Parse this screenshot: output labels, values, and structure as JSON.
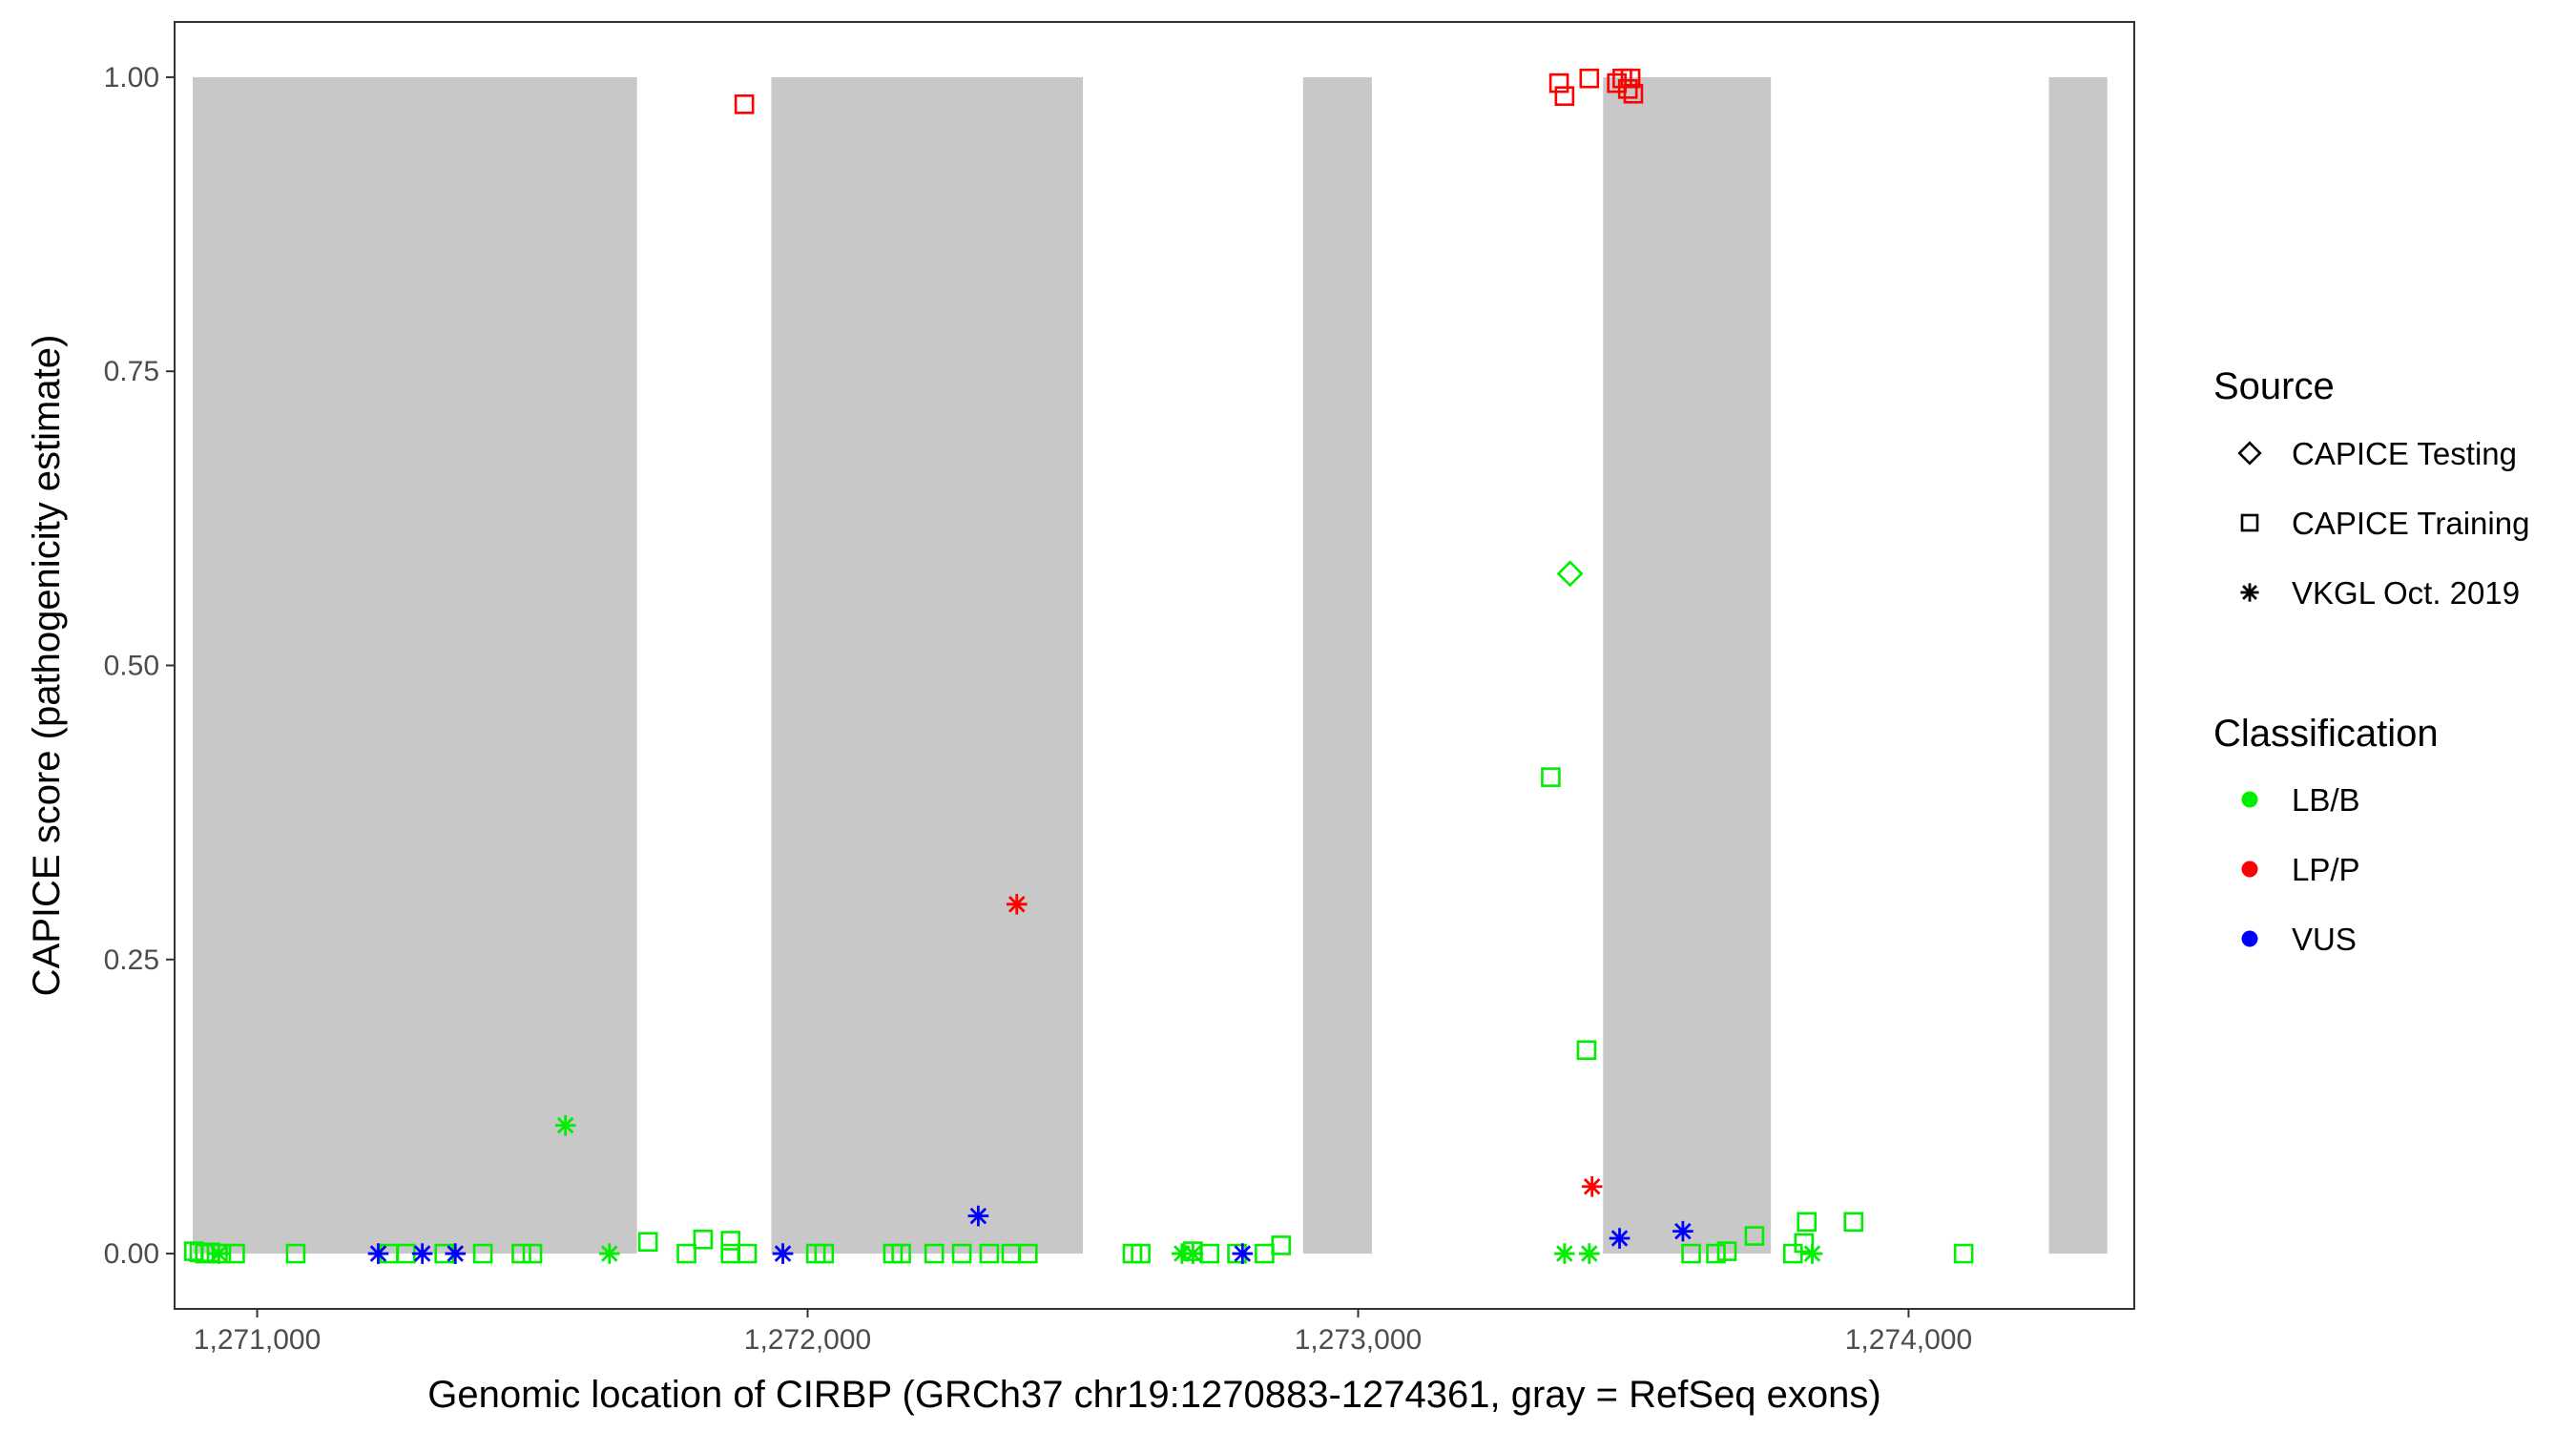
{
  "chart_data": {
    "type": "scatter",
    "title": "",
    "xlabel": "Genomic location of CIRBP (GRCh37 chr19:1270883-1274361, gray = RefSeq exons)",
    "ylabel": "CAPICE score (pathogenicity estimate)",
    "xlim": [
      1270850,
      1274410
    ],
    "ylim": [
      -0.047,
      1.047
    ],
    "x_ticks": [
      1271000,
      1272000,
      1273000,
      1274000
    ],
    "x_tick_labels": [
      "1,271,000",
      "1,272,000",
      "1,273,000",
      "1,274,000"
    ],
    "y_ticks": [
      0,
      0.25,
      0.5,
      0.75,
      1
    ],
    "y_tick_labels": [
      "0.00",
      "0.25",
      "0.50",
      "0.75",
      "1.00"
    ],
    "grid": false,
    "legend_position": "right",
    "exons": [
      {
        "start": 1270883,
        "end": 1271690
      },
      {
        "start": 1271934,
        "end": 1272500
      },
      {
        "start": 1272900,
        "end": 1273025
      },
      {
        "start": 1273445,
        "end": 1273750
      },
      {
        "start": 1274255,
        "end": 1274361
      }
    ],
    "exon_color": "#c8c8c8",
    "legends": {
      "source": {
        "title": "Source",
        "items": [
          {
            "label": "CAPICE Testing",
            "shape": "diamond"
          },
          {
            "label": "CAPICE Training",
            "shape": "square"
          },
          {
            "label": "VKGL Oct. 2019",
            "shape": "asterisk"
          }
        ]
      },
      "classification": {
        "title": "Classification",
        "items": [
          {
            "label": "LB/B",
            "color": "#00ee00"
          },
          {
            "label": "LP/P",
            "color": "#ff0000"
          },
          {
            "label": "VUS",
            "color": "#0000ff"
          }
        ]
      }
    },
    "series": [
      {
        "source": "CAPICE Training",
        "classification": "LB/B",
        "points": [
          [
            1270885,
            0.002
          ],
          [
            1270895,
            0.001
          ],
          [
            1270905,
            0.0
          ],
          [
            1270915,
            0.001
          ],
          [
            1270935,
            0.0
          ],
          [
            1270960,
            0.0
          ],
          [
            1271070,
            0.0
          ],
          [
            1271240,
            0.0
          ],
          [
            1271270,
            0.0
          ],
          [
            1271340,
            0.0
          ],
          [
            1271410,
            0.0
          ],
          [
            1271480,
            0.0
          ],
          [
            1271500,
            0.0
          ],
          [
            1271710,
            0.01
          ],
          [
            1271780,
            0.0
          ],
          [
            1271810,
            0.012
          ],
          [
            1271860,
            0.011
          ],
          [
            1271860,
            0.0
          ],
          [
            1271890,
            0.0
          ],
          [
            1272015,
            0.0
          ],
          [
            1272030,
            0.0
          ],
          [
            1272155,
            0.0
          ],
          [
            1272170,
            0.0
          ],
          [
            1272230,
            0.0
          ],
          [
            1272280,
            0.0
          ],
          [
            1272330,
            0.0
          ],
          [
            1272370,
            0.0
          ],
          [
            1272400,
            0.0
          ],
          [
            1272590,
            0.0
          ],
          [
            1272605,
            0.0
          ],
          [
            1272700,
            0.002
          ],
          [
            1272730,
            0.0
          ],
          [
            1272780,
            0.0
          ],
          [
            1272830,
            0.0
          ],
          [
            1272860,
            0.007
          ],
          [
            1273350,
            0.405
          ],
          [
            1273415,
            0.173
          ],
          [
            1273605,
            0.0
          ],
          [
            1273650,
            0.0
          ],
          [
            1273670,
            0.002
          ],
          [
            1273720,
            0.015
          ],
          [
            1273790,
            0.0
          ],
          [
            1273810,
            0.009
          ],
          [
            1273815,
            0.027
          ],
          [
            1273900,
            0.027
          ],
          [
            1274100,
            0.0
          ]
        ]
      },
      {
        "source": "CAPICE Training",
        "classification": "LP/P",
        "points": [
          [
            1271885,
            0.977
          ],
          [
            1273365,
            0.995
          ],
          [
            1273375,
            0.984
          ],
          [
            1273420,
            0.999
          ],
          [
            1273470,
            0.995
          ],
          [
            1273480,
            0.999
          ],
          [
            1273490,
            0.99
          ],
          [
            1273495,
            0.999
          ],
          [
            1273500,
            0.986
          ]
        ]
      },
      {
        "source": "CAPICE Testing",
        "classification": "LB/B",
        "points": [
          [
            1273385,
            0.578
          ]
        ]
      },
      {
        "source": "VKGL Oct. 2019",
        "classification": "LB/B",
        "points": [
          [
            1270930,
            0.0
          ],
          [
            1271560,
            0.109
          ],
          [
            1271640,
            0.0
          ],
          [
            1272680,
            0.0
          ],
          [
            1272700,
            0.0
          ],
          [
            1273375,
            0.0
          ],
          [
            1273420,
            0.0
          ],
          [
            1273825,
            0.0
          ]
        ]
      },
      {
        "source": "VKGL Oct. 2019",
        "classification": "LP/P",
        "points": [
          [
            1272380,
            0.297
          ],
          [
            1273425,
            0.057
          ]
        ]
      },
      {
        "source": "VKGL Oct. 2019",
        "classification": "VUS",
        "points": [
          [
            1271220,
            0.0
          ],
          [
            1271300,
            0.0
          ],
          [
            1271360,
            0.0
          ],
          [
            1271955,
            0.0
          ],
          [
            1272310,
            0.032
          ],
          [
            1272790,
            0.0
          ],
          [
            1273475,
            0.013
          ],
          [
            1273590,
            0.019
          ]
        ]
      }
    ]
  }
}
